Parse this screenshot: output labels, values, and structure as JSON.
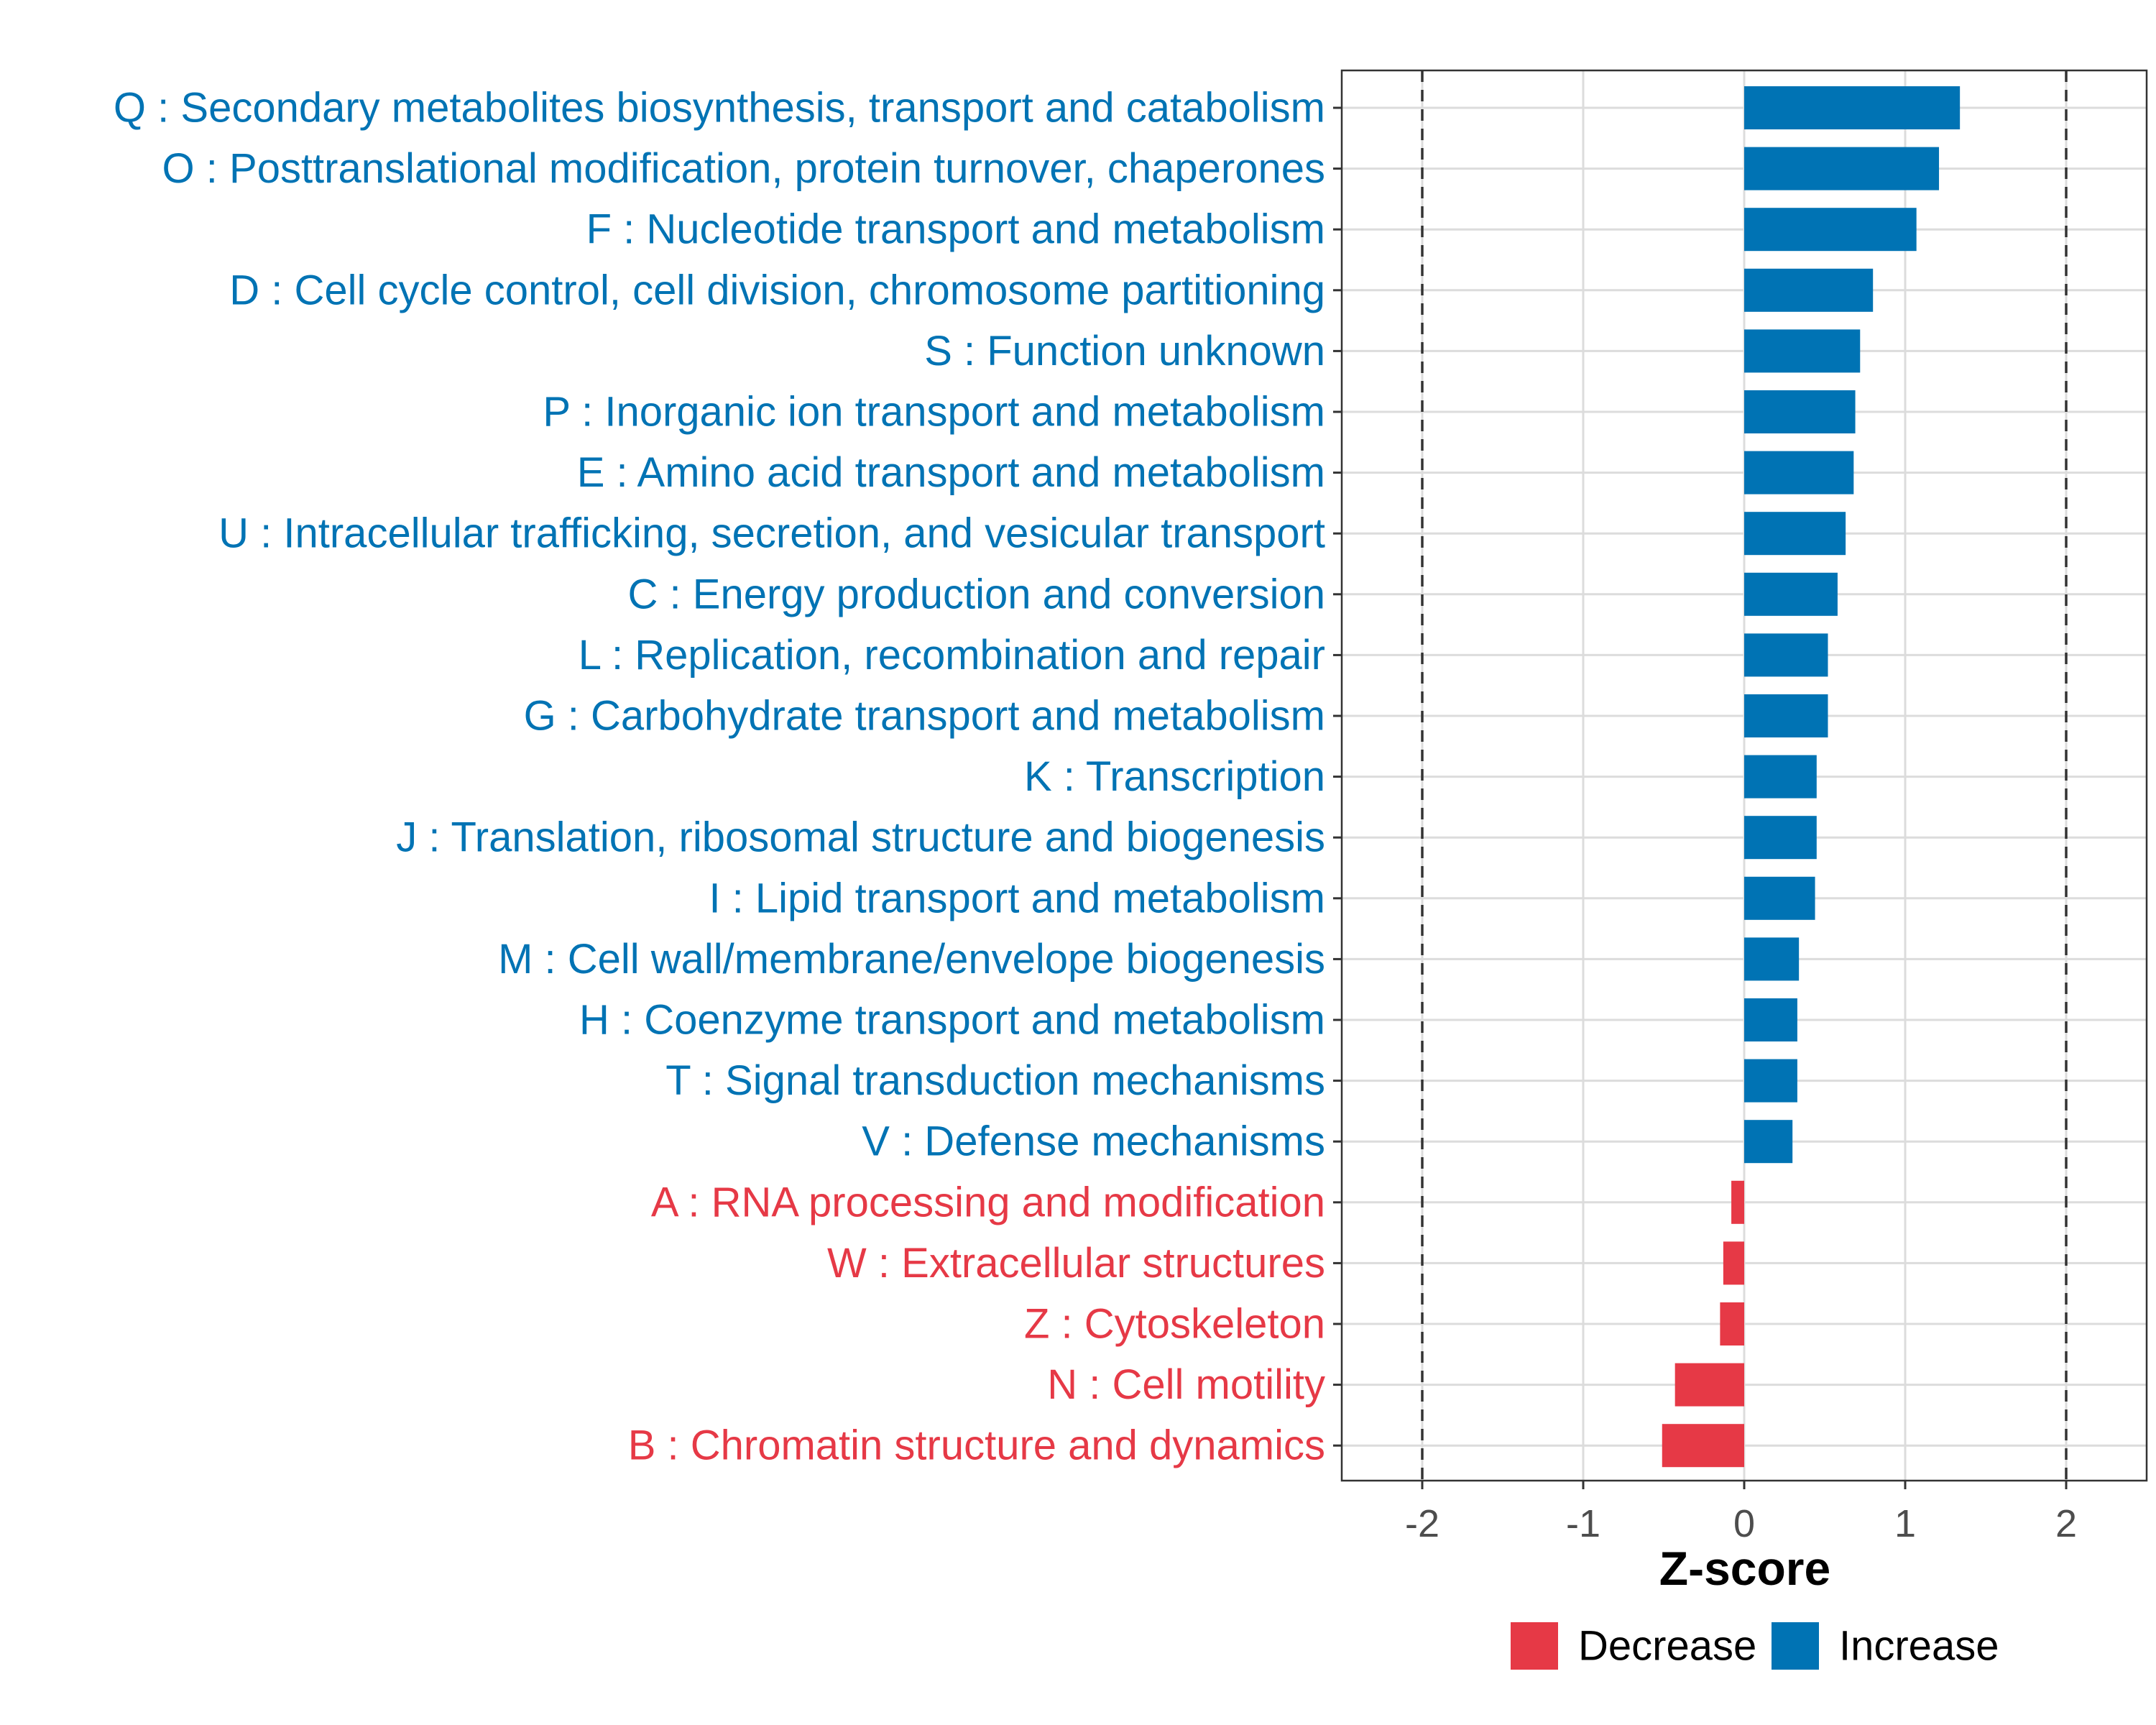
{
  "chart_data": {
    "type": "bar",
    "orientation": "horizontal",
    "xlabel": "Z-score",
    "xlim": [
      -2.5,
      2.5
    ],
    "xticks": [
      -2,
      -1,
      0,
      1,
      2
    ],
    "xtick_labels": [
      "-2",
      "-1",
      "0",
      "1",
      "2"
    ],
    "reference_lines": [
      -2,
      2
    ],
    "grid": true,
    "legend_position": "bottom",
    "colors": {
      "Increase": "#0073b4",
      "Decrease": "#e63946"
    },
    "legend": [
      {
        "label": "Decrease",
        "color": "#e63946"
      },
      {
        "label": "Increase",
        "color": "#0073b4"
      }
    ],
    "categories": [
      {
        "label": "Q : Secondary metabolites biosynthesis, transport and catabolism",
        "value": 1.34,
        "direction": "Increase"
      },
      {
        "label": "O : Posttranslational modification, protein turnover, chaperones",
        "value": 1.21,
        "direction": "Increase"
      },
      {
        "label": "F : Nucleotide transport and metabolism",
        "value": 1.07,
        "direction": "Increase"
      },
      {
        "label": "D : Cell cycle control, cell division, chromosome partitioning",
        "value": 0.8,
        "direction": "Increase"
      },
      {
        "label": "S : Function unknown",
        "value": 0.72,
        "direction": "Increase"
      },
      {
        "label": "P : Inorganic ion transport and metabolism",
        "value": 0.69,
        "direction": "Increase"
      },
      {
        "label": "E : Amino acid transport and metabolism",
        "value": 0.68,
        "direction": "Increase"
      },
      {
        "label": "U : Intracellular trafficking, secretion, and vesicular transport",
        "value": 0.63,
        "direction": "Increase"
      },
      {
        "label": "C : Energy production and conversion",
        "value": 0.58,
        "direction": "Increase"
      },
      {
        "label": "L : Replication, recombination and repair",
        "value": 0.52,
        "direction": "Increase"
      },
      {
        "label": "G : Carbohydrate transport and metabolism",
        "value": 0.52,
        "direction": "Increase"
      },
      {
        "label": "K : Transcription",
        "value": 0.45,
        "direction": "Increase"
      },
      {
        "label": "J : Translation, ribosomal structure and biogenesis",
        "value": 0.45,
        "direction": "Increase"
      },
      {
        "label": "I : Lipid transport and metabolism",
        "value": 0.44,
        "direction": "Increase"
      },
      {
        "label": "M : Cell wall/membrane/envelope biogenesis",
        "value": 0.34,
        "direction": "Increase"
      },
      {
        "label": "H : Coenzyme transport and metabolism",
        "value": 0.33,
        "direction": "Increase"
      },
      {
        "label": "T : Signal transduction mechanisms",
        "value": 0.33,
        "direction": "Increase"
      },
      {
        "label": "V : Defense mechanisms",
        "value": 0.3,
        "direction": "Increase"
      },
      {
        "label": "A : RNA processing and modification",
        "value": -0.08,
        "direction": "Decrease"
      },
      {
        "label": "W : Extracellular structures",
        "value": -0.13,
        "direction": "Decrease"
      },
      {
        "label": "Z : Cytoskeleton",
        "value": -0.15,
        "direction": "Decrease"
      },
      {
        "label": "N : Cell motility",
        "value": -0.43,
        "direction": "Decrease"
      },
      {
        "label": "B : Chromatin structure and dynamics",
        "value": -0.51,
        "direction": "Decrease"
      }
    ]
  }
}
